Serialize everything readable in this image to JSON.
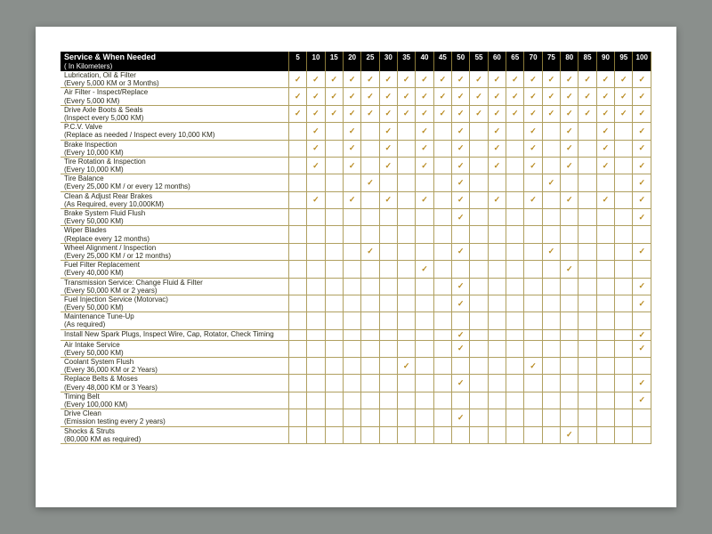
{
  "type": "table",
  "colors": {
    "page_bg": "#8a8f8c",
    "card_bg": "#ffffff",
    "header_bg": "#000000",
    "header_fg": "#ffffff",
    "grid": "#b0a060",
    "text": "#2a2a1a",
    "check": "#b88a20"
  },
  "fonts": {
    "family": "Verdana, Arial, sans-serif",
    "header_size_pt": 8,
    "body_size_pt": 7
  },
  "check_glyph": "✓",
  "header": {
    "title": "Service & When Needed",
    "subtitle": "( In Kilometers)"
  },
  "km_columns": [
    "5",
    "10",
    "15",
    "20",
    "25",
    "30",
    "35",
    "40",
    "45",
    "50",
    "55",
    "60",
    "65",
    "70",
    "75",
    "80",
    "85",
    "90",
    "95",
    "100"
  ],
  "rows": [
    {
      "name": "Lubrication, Oil & Filter",
      "note": "(Every 5,000 KM or 3 Months)",
      "checks": [
        1,
        1,
        1,
        1,
        1,
        1,
        1,
        1,
        1,
        1,
        1,
        1,
        1,
        1,
        1,
        1,
        1,
        1,
        1,
        1
      ]
    },
    {
      "name": "Air Filter - Inspect/Replace",
      "note": "(Every 5,000 KM)",
      "checks": [
        1,
        1,
        1,
        1,
        1,
        1,
        1,
        1,
        1,
        1,
        1,
        1,
        1,
        1,
        1,
        1,
        1,
        1,
        1,
        1
      ]
    },
    {
      "name": "Drive Axle Boots & Seals",
      "note": "(Inspect every 5,000 KM)",
      "checks": [
        1,
        1,
        1,
        1,
        1,
        1,
        1,
        1,
        1,
        1,
        1,
        1,
        1,
        1,
        1,
        1,
        1,
        1,
        1,
        1
      ]
    },
    {
      "name": "P.C.V. Valve",
      "note": "(Replace as needed / Inspect every 10,000 KM)",
      "checks": [
        0,
        1,
        0,
        1,
        0,
        1,
        0,
        1,
        0,
        1,
        0,
        1,
        0,
        1,
        0,
        1,
        0,
        1,
        0,
        1
      ]
    },
    {
      "name": "Brake Inspection",
      "note": "(Every 10,000 KM)",
      "checks": [
        0,
        1,
        0,
        1,
        0,
        1,
        0,
        1,
        0,
        1,
        0,
        1,
        0,
        1,
        0,
        1,
        0,
        1,
        0,
        1
      ]
    },
    {
      "name": "Tire Rotation & Inspection",
      "note": "(Every 10,000 KM)",
      "checks": [
        0,
        1,
        0,
        1,
        0,
        1,
        0,
        1,
        0,
        1,
        0,
        1,
        0,
        1,
        0,
        1,
        0,
        1,
        0,
        1
      ]
    },
    {
      "name": "Tire Balance",
      "note": "(Every 25,000 KM / or every 12 months)",
      "checks": [
        0,
        0,
        0,
        0,
        1,
        0,
        0,
        0,
        0,
        1,
        0,
        0,
        0,
        0,
        1,
        0,
        0,
        0,
        0,
        1
      ]
    },
    {
      "name": "Clean & Adjust Rear Brakes",
      "note": "(As Required, every 10,000KM)",
      "checks": [
        0,
        1,
        0,
        1,
        0,
        1,
        0,
        1,
        0,
        1,
        0,
        1,
        0,
        1,
        0,
        1,
        0,
        1,
        0,
        1
      ]
    },
    {
      "name": "Brake System Fluid Flush",
      "note": "(Every 50,000 KM)",
      "checks": [
        0,
        0,
        0,
        0,
        0,
        0,
        0,
        0,
        0,
        1,
        0,
        0,
        0,
        0,
        0,
        0,
        0,
        0,
        0,
        1
      ]
    },
    {
      "name": "Wiper Blades",
      "note": "(Replace every 12 months)",
      "checks": [
        0,
        0,
        0,
        0,
        0,
        0,
        0,
        0,
        0,
        0,
        0,
        0,
        0,
        0,
        0,
        0,
        0,
        0,
        0,
        0
      ]
    },
    {
      "name": "Wheel Alignment / Inspection",
      "note": "(Every 25,000 KM / or 12 months)",
      "checks": [
        0,
        0,
        0,
        0,
        1,
        0,
        0,
        0,
        0,
        1,
        0,
        0,
        0,
        0,
        1,
        0,
        0,
        0,
        0,
        1
      ]
    },
    {
      "name": "Fuel Filter Replacement",
      "note": "(Every 40,000 KM)",
      "checks": [
        0,
        0,
        0,
        0,
        0,
        0,
        0,
        1,
        0,
        0,
        0,
        0,
        0,
        0,
        0,
        1,
        0,
        0,
        0,
        0
      ]
    },
    {
      "name": "Transmission Service: Change Fluid & Filter",
      "note": "(Every 50,000 KM or 2 years)",
      "checks": [
        0,
        0,
        0,
        0,
        0,
        0,
        0,
        0,
        0,
        1,
        0,
        0,
        0,
        0,
        0,
        0,
        0,
        0,
        0,
        1
      ]
    },
    {
      "name": "Fuel Injection Service (Motorvac)",
      "note": "(Every 50,000 KM)",
      "checks": [
        0,
        0,
        0,
        0,
        0,
        0,
        0,
        0,
        0,
        1,
        0,
        0,
        0,
        0,
        0,
        0,
        0,
        0,
        0,
        1
      ]
    },
    {
      "name": "Maintenance Tune-Up",
      "note": "(As required)",
      "checks": [
        0,
        0,
        0,
        0,
        0,
        0,
        0,
        0,
        0,
        0,
        0,
        0,
        0,
        0,
        0,
        0,
        0,
        0,
        0,
        0
      ]
    },
    {
      "name": "Install New Spark Plugs, Inspect Wire, Cap, Rotator, Check Timing",
      "note": "",
      "checks": [
        0,
        0,
        0,
        0,
        0,
        0,
        0,
        0,
        0,
        1,
        0,
        0,
        0,
        0,
        0,
        0,
        0,
        0,
        0,
        1
      ]
    },
    {
      "name": "Air Intake Service",
      "note": "(Every 50,000 KM)",
      "checks": [
        0,
        0,
        0,
        0,
        0,
        0,
        0,
        0,
        0,
        1,
        0,
        0,
        0,
        0,
        0,
        0,
        0,
        0,
        0,
        1
      ]
    },
    {
      "name": "Coolant System Flush",
      "note": "(Every 36,000 KM or 2 Years)",
      "checks": [
        0,
        0,
        0,
        0,
        0,
        0,
        1,
        0,
        0,
        0,
        0,
        0,
        0,
        1,
        0,
        0,
        0,
        0,
        0,
        0
      ]
    },
    {
      "name": "Replace Belts & Moses",
      "note": "(Every 48,000 KM or 3 Years)",
      "checks": [
        0,
        0,
        0,
        0,
        0,
        0,
        0,
        0,
        0,
        1,
        0,
        0,
        0,
        0,
        0,
        0,
        0,
        0,
        0,
        1
      ]
    },
    {
      "name": "Timing Belt",
      "note": "(Every 100,000 KM)",
      "checks": [
        0,
        0,
        0,
        0,
        0,
        0,
        0,
        0,
        0,
        0,
        0,
        0,
        0,
        0,
        0,
        0,
        0,
        0,
        0,
        1
      ]
    },
    {
      "name": "Drive Clean",
      "note": "(Emission testing every 2 years)",
      "checks": [
        0,
        0,
        0,
        0,
        0,
        0,
        0,
        0,
        0,
        1,
        0,
        0,
        0,
        0,
        0,
        0,
        0,
        0,
        0,
        0
      ]
    },
    {
      "name": "Shocks & Struts",
      "note": "(80,000 KM as required)",
      "checks": [
        0,
        0,
        0,
        0,
        0,
        0,
        0,
        0,
        0,
        0,
        0,
        0,
        0,
        0,
        0,
        1,
        0,
        0,
        0,
        0
      ]
    }
  ]
}
